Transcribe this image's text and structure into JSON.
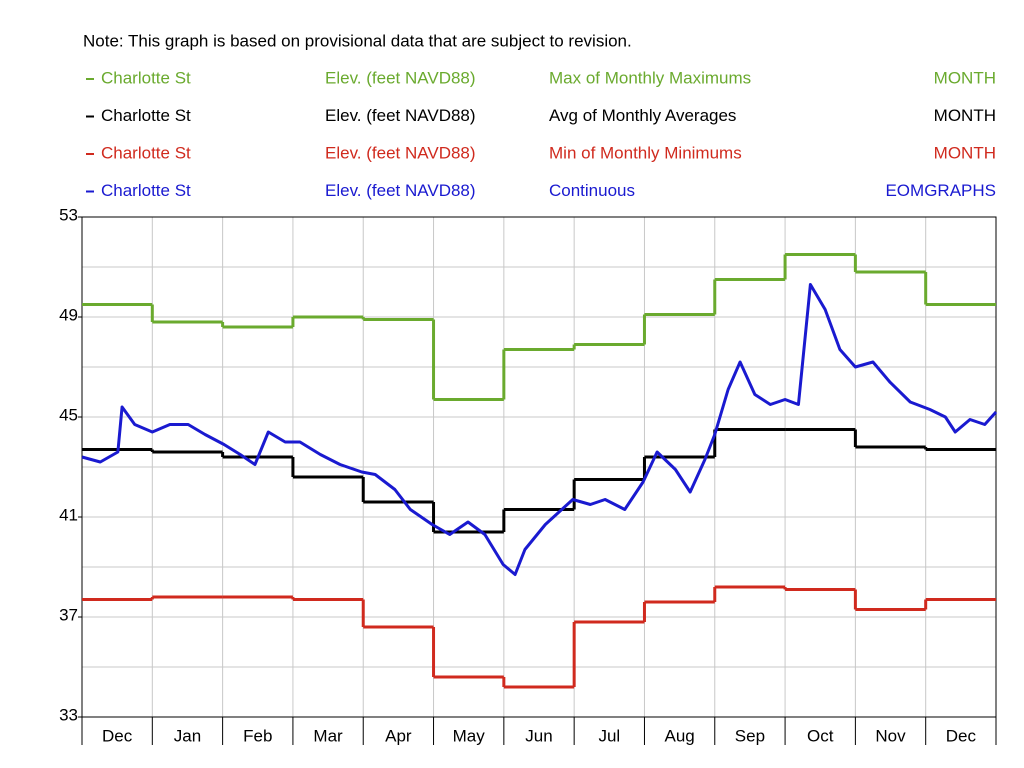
{
  "chart_data": {
    "type": "step",
    "note": "Note: This graph is based on provisional data that are subject to revision.",
    "categories": [
      "Dec",
      "Jan",
      "Feb",
      "Mar",
      "Apr",
      "May",
      "Jun",
      "Jul",
      "Aug",
      "Sep",
      "Oct",
      "Nov",
      "Dec"
    ],
    "ylim": [
      33,
      53
    ],
    "yticks": [
      33,
      37,
      41,
      45,
      49,
      53
    ],
    "ygrid": [
      35,
      39,
      43,
      47,
      51
    ],
    "xlim": [
      0,
      13
    ],
    "grid": true,
    "series": [
      {
        "name": "Charlotte St",
        "parameter": "Elev. (feet NAVD88)",
        "statistic": "Max of Monthly Maximums",
        "interval": "MONTH",
        "color": "#6aaa2e",
        "values": [
          49.5,
          48.8,
          48.6,
          49.0,
          48.9,
          45.7,
          47.7,
          47.9,
          49.1,
          50.5,
          51.5,
          50.8,
          49.5
        ]
      },
      {
        "name": "Charlotte St",
        "parameter": "Elev. (feet NAVD88)",
        "statistic": "Avg of Monthly Averages",
        "interval": "MONTH",
        "color": "#000000",
        "values": [
          43.7,
          43.6,
          43.4,
          42.6,
          41.6,
          40.4,
          41.3,
          42.5,
          43.4,
          44.5,
          44.5,
          43.8,
          43.7
        ]
      },
      {
        "name": "Charlotte St",
        "parameter": "Elev. (feet NAVD88)",
        "statistic": "Min of Monthly Minimums",
        "interval": "MONTH",
        "color": "#d02a1e",
        "values": [
          37.7,
          37.8,
          37.8,
          37.7,
          36.6,
          34.6,
          34.2,
          36.8,
          37.6,
          38.2,
          38.1,
          37.3,
          37.7
        ]
      },
      {
        "name": "Charlotte St",
        "parameter": "Elev. (feet NAVD88)",
        "statistic": "Continuous",
        "interval": "EOMGRAPHS",
        "color": "#1a1ad0",
        "continuous": true,
        "x": [
          0,
          0.26,
          0.51,
          0.57,
          0.75,
          1.0,
          1.25,
          1.51,
          1.75,
          2.02,
          2.25,
          2.46,
          2.65,
          2.89,
          3.1,
          3.39,
          3.67,
          3.98,
          4.17,
          4.45,
          4.67,
          4.98,
          5.23,
          5.49,
          5.73,
          5.99,
          6.16,
          6.3,
          6.59,
          6.98,
          7.23,
          7.44,
          7.72,
          7.98,
          8.18,
          8.44,
          8.65,
          8.86,
          9.0,
          9.19,
          9.36,
          9.57,
          9.79,
          10.0,
          10.19,
          10.36,
          10.57,
          10.78,
          11.0,
          11.25,
          11.49,
          11.78,
          12.06,
          12.28,
          12.42,
          12.63,
          12.84,
          13.0
        ],
        "values": [
          43.4,
          43.2,
          43.6,
          45.4,
          44.7,
          44.4,
          44.7,
          44.7,
          44.3,
          43.9,
          43.5,
          43.1,
          44.4,
          44.0,
          44.0,
          43.5,
          43.1,
          42.8,
          42.7,
          42.1,
          41.3,
          40.7,
          40.3,
          40.8,
          40.3,
          39.1,
          38.7,
          39.7,
          40.7,
          41.7,
          41.5,
          41.7,
          41.3,
          42.4,
          43.6,
          42.9,
          42.0,
          43.3,
          44.3,
          46.1,
          47.2,
          45.9,
          45.5,
          45.7,
          45.5,
          50.3,
          49.3,
          47.7,
          47.0,
          47.2,
          46.4,
          45.6,
          45.3,
          45.0,
          44.4,
          44.9,
          44.7,
          45.2
        ]
      }
    ]
  }
}
